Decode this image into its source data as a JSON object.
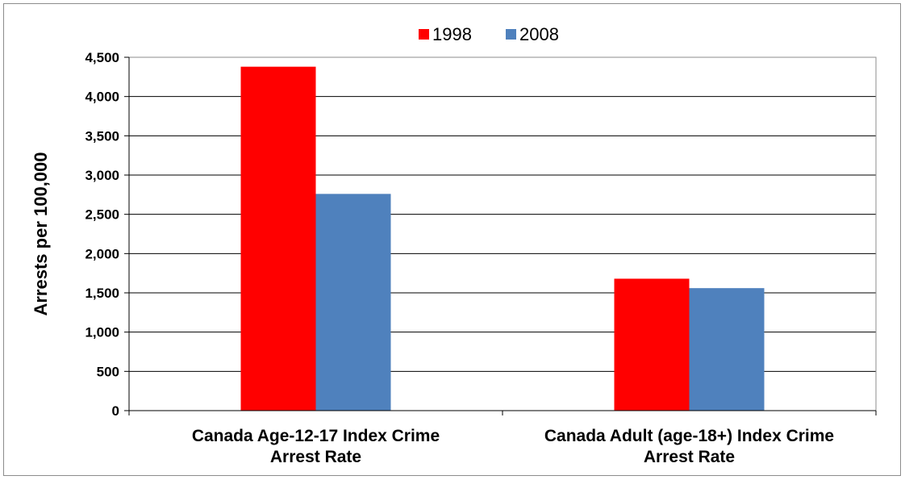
{
  "chart_data": {
    "type": "bar",
    "categories": [
      [
        "Canada Age-12-17 Index Crime",
        "Arrest Rate"
      ],
      [
        "Canada Adult (age-18+) Index Crime",
        "Arrest Rate"
      ]
    ],
    "series": [
      {
        "name": "1998",
        "values": [
          4380,
          1680
        ],
        "color": "#ff0000"
      },
      {
        "name": "2008",
        "values": [
          2760,
          1560
        ],
        "color": "#4f81bd"
      }
    ],
    "title": "",
    "xlabel": "",
    "ylabel": "Arrests per 100,000",
    "ylim": [
      0,
      4500
    ],
    "yticks": [
      0,
      500,
      1000,
      1500,
      2000,
      2500,
      3000,
      3500,
      4000,
      4500
    ],
    "ytick_labels": [
      "0",
      "500",
      "1,000",
      "1,500",
      "2,000",
      "2,500",
      "3,000",
      "3,500",
      "4,000",
      "4,500"
    ],
    "grid": true,
    "legend_position": "top-center"
  }
}
